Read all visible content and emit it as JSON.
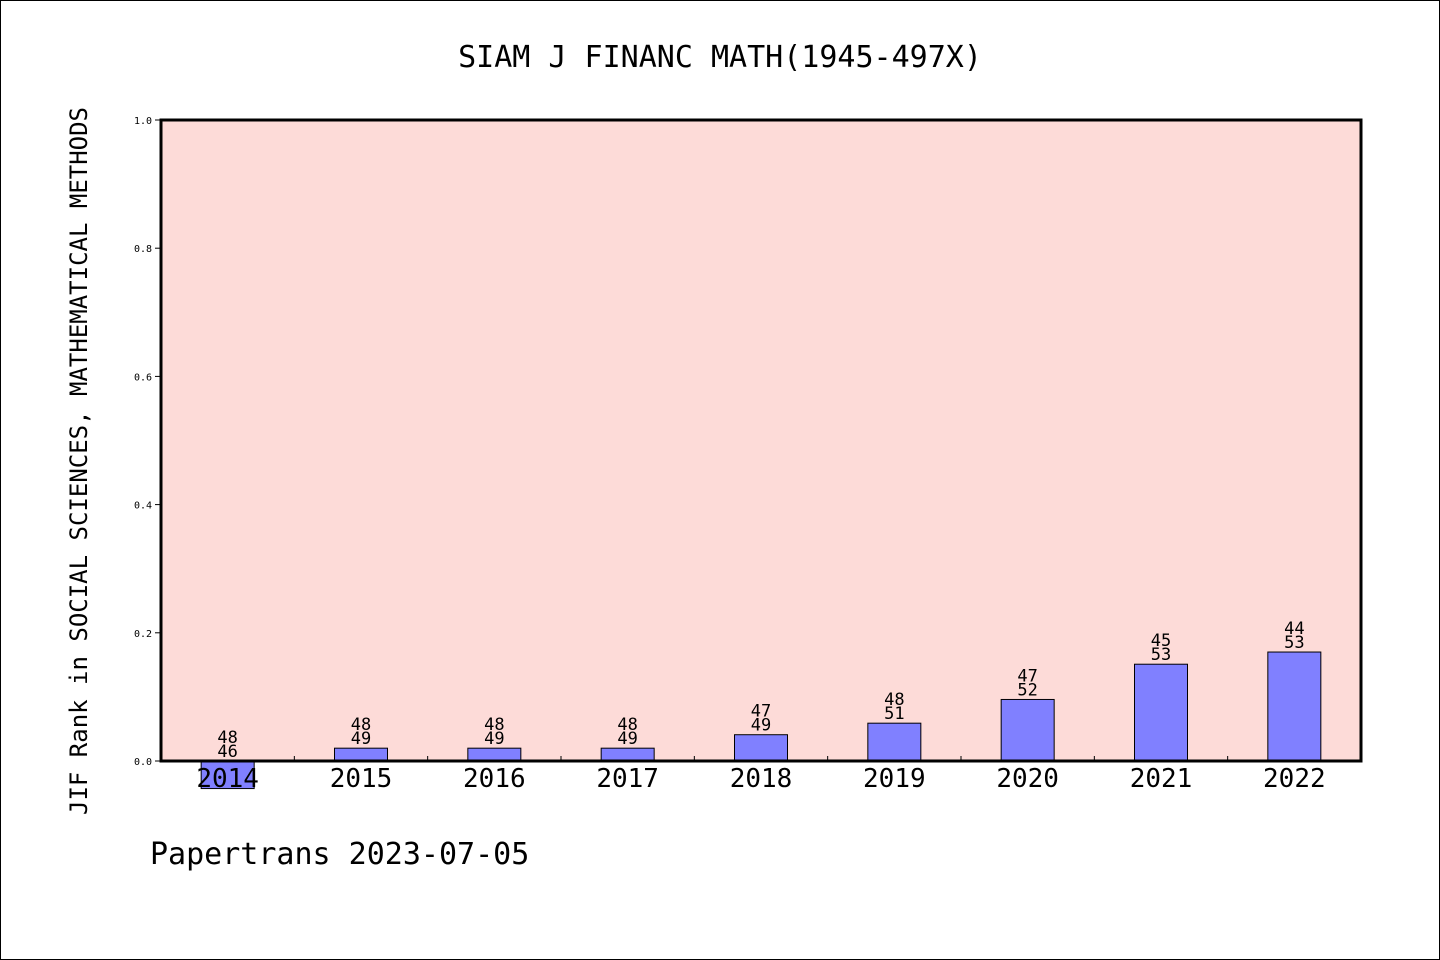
{
  "chart_data": {
    "type": "bar",
    "title": "SIAM J FINANC MATH(1945-497X)",
    "ylabel": "JIF Rank in SOCIAL SCIENCES, MATHEMATICAL METHODS",
    "xlabel": "",
    "ylim": [
      0.0,
      1.0
    ],
    "yticks": [
      "0.0",
      "0.2",
      "0.4",
      "0.6",
      "0.8",
      "1.0"
    ],
    "categories": [
      "2014",
      "2015",
      "2016",
      "2017",
      "2018",
      "2019",
      "2020",
      "2021",
      "2022"
    ],
    "values": [
      -0.043,
      0.02,
      0.02,
      0.02,
      0.041,
      0.059,
      0.096,
      0.151,
      0.17
    ],
    "rank_labels": [
      {
        "rank": "48",
        "total": "46"
      },
      {
        "rank": "48",
        "total": "49"
      },
      {
        "rank": "48",
        "total": "49"
      },
      {
        "rank": "48",
        "total": "49"
      },
      {
        "rank": "47",
        "total": "49"
      },
      {
        "rank": "48",
        "total": "51"
      },
      {
        "rank": "47",
        "total": "52"
      },
      {
        "rank": "45",
        "total": "53"
      },
      {
        "rank": "44",
        "total": "53"
      }
    ],
    "grid": false,
    "colors": {
      "plot_background": "#fddbd8",
      "bar_fill": "#8080ff",
      "bar_edge": "#000000"
    }
  },
  "footer": "Papertrans 2023-07-05"
}
